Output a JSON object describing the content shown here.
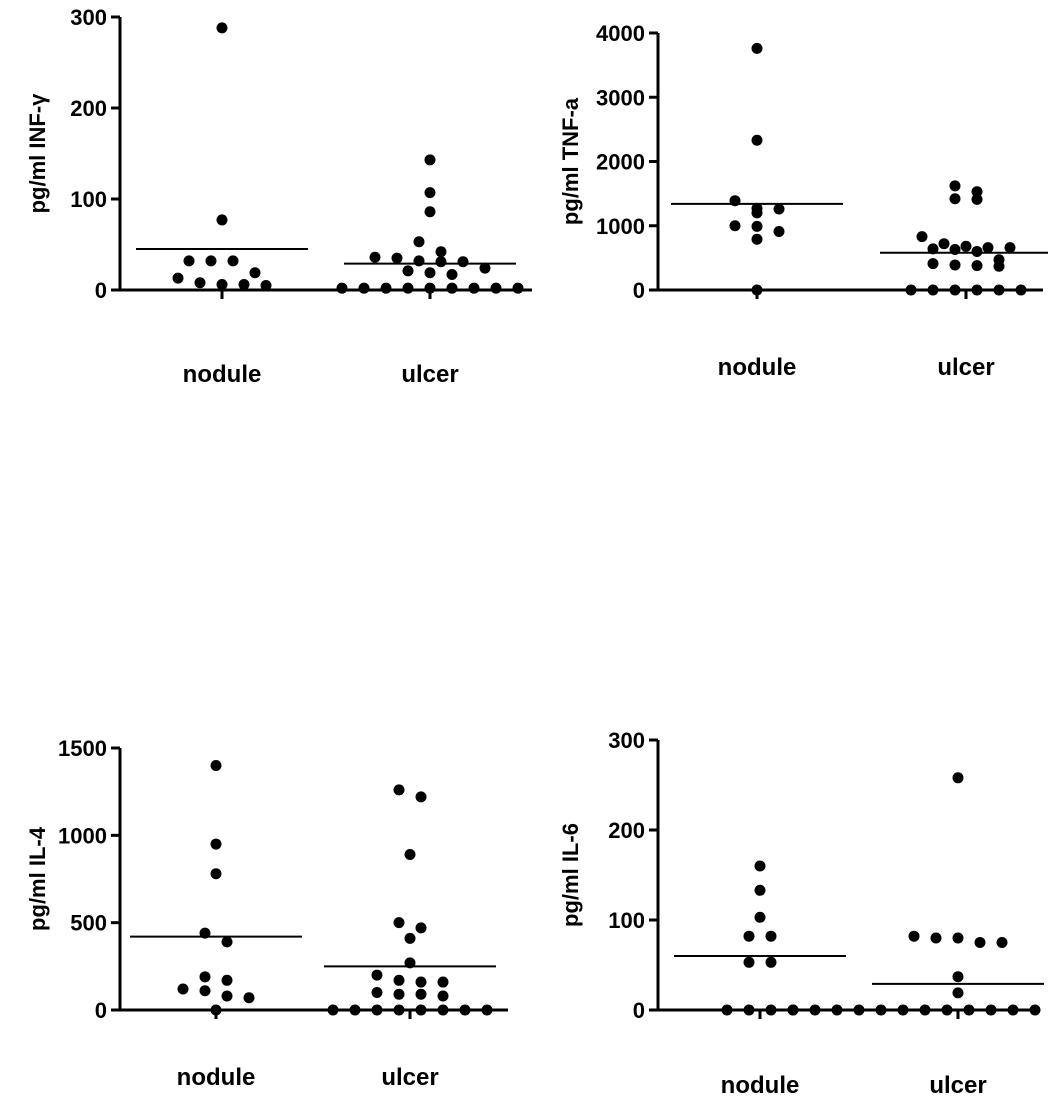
{
  "chart_data": [
    {
      "type": "scatter",
      "ylabel": "pg/ml INF-γ",
      "categories": [
        "nodule",
        "ulcer"
      ],
      "ylim": [
        0,
        300
      ],
      "yticks": [
        "0",
        "100",
        "200",
        "300"
      ],
      "series": [
        {
          "category": "nodule",
          "values": [
            288,
            77,
            32,
            32,
            32,
            19,
            13,
            8,
            6,
            6,
            5
          ],
          "mean": 45
        },
        {
          "category": "ulcer",
          "values": [
            143,
            107,
            86,
            53,
            42,
            36,
            35,
            32,
            31,
            31,
            24,
            21,
            19,
            17,
            2,
            2,
            2,
            2,
            2,
            2,
            2,
            2,
            2
          ],
          "mean": 29
        }
      ]
    },
    {
      "type": "scatter",
      "ylabel": "pg/ml TNF-a",
      "categories": [
        "nodule",
        "ulcer"
      ],
      "ylim": [
        0,
        4000
      ],
      "yticks": [
        "0",
        "1000",
        "2000",
        "3000",
        "4000"
      ],
      "series": [
        {
          "category": "nodule",
          "values": [
            3760,
            2330,
            1390,
            1260,
            1270,
            1200,
            1000,
            990,
            910,
            790,
            0
          ],
          "mean": 1340
        },
        {
          "category": "ulcer",
          "values": [
            1620,
            1530,
            1420,
            1410,
            830,
            720,
            680,
            660,
            660,
            640,
            630,
            600,
            470,
            410,
            390,
            380,
            370,
            0,
            0,
            0,
            0,
            0,
            0
          ],
          "mean": 580
        }
      ]
    },
    {
      "type": "scatter",
      "ylabel": "pg/ml IL-4",
      "categories": [
        "nodule",
        "ulcer"
      ],
      "ylim": [
        0,
        1500
      ],
      "yticks": [
        "0",
        "500",
        "1000",
        "1500"
      ],
      "series": [
        {
          "category": "nodule",
          "values": [
            1400,
            950,
            780,
            440,
            390,
            190,
            170,
            120,
            110,
            80,
            70,
            0
          ],
          "mean": 420
        },
        {
          "category": "ulcer",
          "values": [
            1260,
            1220,
            890,
            500,
            470,
            410,
            270,
            200,
            170,
            160,
            160,
            100,
            90,
            90,
            80,
            0,
            0,
            0,
            0,
            0,
            0,
            0,
            0
          ],
          "mean": 250
        }
      ]
    },
    {
      "type": "scatter",
      "ylabel": "pg/ml IL-6",
      "categories": [
        "nodule",
        "ulcer"
      ],
      "ylim": [
        0,
        300
      ],
      "yticks": [
        "0",
        "100",
        "200",
        "300"
      ],
      "series": [
        {
          "category": "nodule",
          "values": [
            160,
            133,
            103,
            82,
            82,
            53,
            53,
            0,
            0,
            0,
            0
          ],
          "mean": 60
        },
        {
          "category": "ulcer",
          "values": [
            258,
            82,
            80,
            80,
            75,
            75,
            37,
            19,
            0,
            0,
            0,
            0,
            0,
            0,
            0,
            0,
            0,
            0,
            0,
            0,
            0,
            0,
            0,
            0
          ],
          "mean": 29
        }
      ]
    }
  ]
}
